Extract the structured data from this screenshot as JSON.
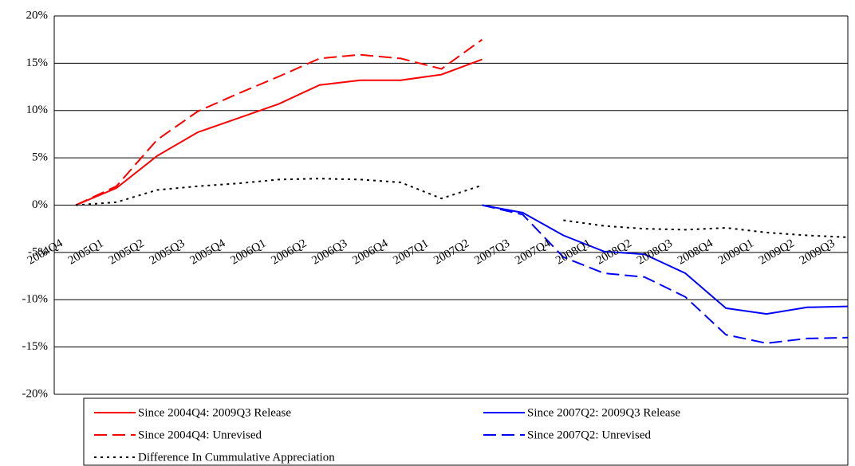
{
  "chart_data": {
    "type": "line",
    "categories": [
      "2004Q4",
      "2005Q1",
      "2005Q2",
      "2005Q3",
      "2005Q4",
      "2006Q1",
      "2006Q2",
      "2006Q3",
      "2006Q4",
      "2007Q1",
      "2007Q2",
      "2007Q3",
      "2007Q4",
      "2008Q1",
      "2008Q2",
      "2008Q3",
      "2008Q4",
      "2009Q1",
      "2009Q2",
      "2009Q3"
    ],
    "series": [
      {
        "name": "Since 2004Q4: 2009Q3 Release",
        "color": "#ff0000",
        "dash": "solid",
        "values": [
          0,
          1.8,
          5.2,
          7.7,
          9.2,
          10.7,
          12.7,
          13.2,
          13.2,
          13.8,
          15.4,
          null,
          null,
          null,
          null,
          null,
          null,
          null,
          null,
          null
        ]
      },
      {
        "name": "Since 2007Q2: 2009Q3 Release",
        "color": "#0000ff",
        "dash": "solid",
        "values": [
          null,
          null,
          null,
          null,
          null,
          null,
          null,
          null,
          null,
          null,
          0,
          -0.8,
          -3.2,
          -4.9,
          -5.2,
          -7.2,
          -10.9,
          -11.5,
          -10.8,
          -10.7
        ]
      },
      {
        "name": "Since 2004Q4: Unrevised",
        "color": "#ff0000",
        "dash": "dashed",
        "values": [
          0,
          2.0,
          6.9,
          9.9,
          11.8,
          13.6,
          15.5,
          15.9,
          15.5,
          14.4,
          17.5,
          null,
          null,
          null,
          null,
          null,
          null,
          null,
          null,
          null
        ]
      },
      {
        "name": "Since 2007Q2: Unrevised",
        "color": "#0000ff",
        "dash": "dashed",
        "values": [
          null,
          null,
          null,
          null,
          null,
          null,
          null,
          null,
          null,
          null,
          0,
          -1.0,
          -5.5,
          -7.2,
          -7.6,
          -9.7,
          -13.7,
          -14.6,
          -14.1,
          -14.0
        ]
      },
      {
        "name": "Difference In Cummulative Appreciation",
        "color": "#000000",
        "dash": "dotted",
        "values": [
          0,
          0.3,
          1.6,
          2.0,
          2.3,
          2.7,
          2.8,
          2.7,
          2.4,
          0.7,
          2.1,
          null,
          -1.6,
          -2.2,
          -2.5,
          -2.6,
          -2.4,
          -2.9,
          -3.2,
          -3.4
        ]
      }
    ],
    "ylim": [
      -20,
      20
    ],
    "yticks": [
      {
        "value": -20,
        "label": "-20%"
      },
      {
        "value": -15,
        "label": "-15%"
      },
      {
        "value": -10,
        "label": "-10%"
      },
      {
        "value": -5,
        "label": "-5%"
      },
      {
        "value": 0,
        "label": "0%"
      },
      {
        "value": 5,
        "label": "5%"
      },
      {
        "value": 10,
        "label": "10%"
      },
      {
        "value": 15,
        "label": "15%"
      },
      {
        "value": 20,
        "label": "20%"
      }
    ],
    "grid": true,
    "legend": "bottom"
  }
}
